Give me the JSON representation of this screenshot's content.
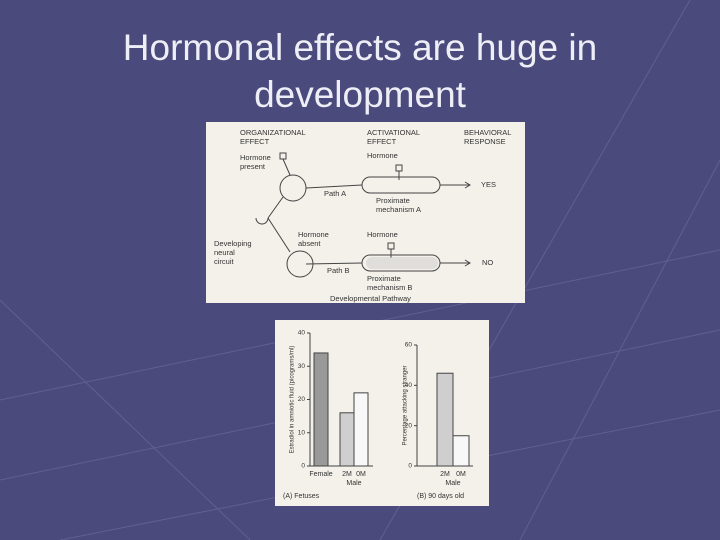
{
  "title": "Hormonal effects are huge in development",
  "diagram": {
    "organizational": [
      "ORGANIZATIONAL",
      "EFFECT"
    ],
    "activational": [
      "ACTIVATIONAL",
      "EFFECT"
    ],
    "behavioral": [
      "BEHAVIORAL",
      "RESPONSE"
    ],
    "hormone_present": [
      "Hormone",
      "present"
    ],
    "hormone_a": "Hormone",
    "path_a": "Path A",
    "mechanism_a": [
      "Proximate",
      "mechanism A"
    ],
    "yes": "YES",
    "developing": [
      "Developing",
      "neural",
      "circuit"
    ],
    "hormone_absent": [
      "Hormone",
      "absent"
    ],
    "hormone_b": "Hormone",
    "path_b": "Path B",
    "mechanism_b": [
      "Proximate",
      "mechanism B"
    ],
    "no": "NO",
    "footer": "Developmental Pathway"
  },
  "chart_data": [
    {
      "type": "bar",
      "ylabel": "Estradiol in amniotic fluid (picograms/ml)",
      "categories": [
        "Female",
        "2M",
        "0M"
      ],
      "values": [
        34,
        16,
        22
      ],
      "group_label": "Male",
      "caption": "(A) Fetuses",
      "ylim": [
        0,
        40
      ],
      "yticks": [
        0,
        10,
        20,
        30,
        40
      ]
    },
    {
      "type": "bar",
      "ylabel": "Percentage attacking stranger",
      "categories": [
        "2M",
        "0M"
      ],
      "values": [
        46,
        15
      ],
      "group_label": "Male",
      "caption": "(B) 90 days old",
      "ylim": [
        0,
        60
      ],
      "yticks": [
        0,
        20,
        40,
        60
      ]
    }
  ]
}
